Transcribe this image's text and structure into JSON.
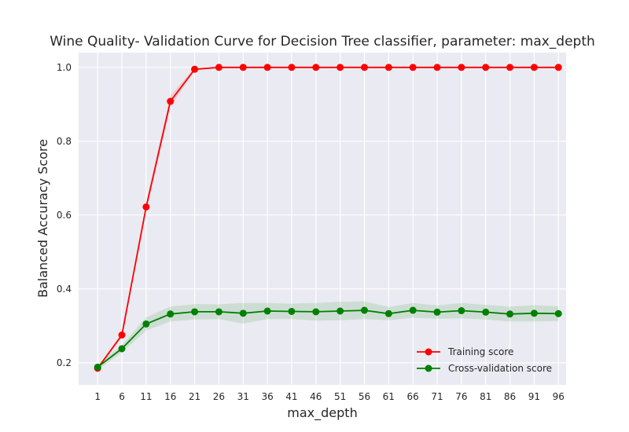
{
  "chart_data": {
    "type": "line",
    "title": "Wine Quality- Validation Curve for Decision Tree classifier, parameter: max_depth",
    "xlabel": "max_depth",
    "ylabel": "Balanced Accuracy Score",
    "x": [
      1,
      6,
      11,
      16,
      21,
      26,
      31,
      36,
      41,
      46,
      51,
      56,
      61,
      66,
      71,
      76,
      81,
      86,
      91,
      96
    ],
    "ylim": [
      0.14,
      1.04
    ],
    "yticks": [
      0.2,
      0.4,
      0.6,
      0.8,
      1.0
    ],
    "ytick_labels": [
      "0.2",
      "0.4",
      "0.6",
      "0.8",
      "1.0"
    ],
    "grid": true,
    "legend_position": "lower-right",
    "series": [
      {
        "name": "Training score",
        "color": "#ff0000",
        "band_color": "#ff0000",
        "values": [
          0.185,
          0.275,
          0.622,
          0.908,
          0.995,
          1.0,
          1.0,
          1.0,
          1.0,
          1.0,
          1.0,
          1.0,
          1.0,
          1.0,
          1.0,
          1.0,
          1.0,
          1.0,
          1.0,
          1.0
        ],
        "std": [
          0.004,
          0.006,
          0.012,
          0.016,
          0.004,
          0.0,
          0.0,
          0.0,
          0.0,
          0.0,
          0.0,
          0.0,
          0.0,
          0.0,
          0.0,
          0.0,
          0.0,
          0.0,
          0.0,
          0.0
        ]
      },
      {
        "name": "Cross-validation score",
        "color": "#008000",
        "band_color": "#008000",
        "values": [
          0.188,
          0.238,
          0.305,
          0.332,
          0.338,
          0.338,
          0.334,
          0.34,
          0.339,
          0.338,
          0.34,
          0.342,
          0.333,
          0.342,
          0.337,
          0.341,
          0.337,
          0.332,
          0.334,
          0.333
        ],
        "std": [
          0.008,
          0.01,
          0.018,
          0.02,
          0.021,
          0.02,
          0.028,
          0.022,
          0.021,
          0.024,
          0.025,
          0.024,
          0.018,
          0.02,
          0.018,
          0.021,
          0.02,
          0.02,
          0.022,
          0.02
        ]
      }
    ]
  }
}
